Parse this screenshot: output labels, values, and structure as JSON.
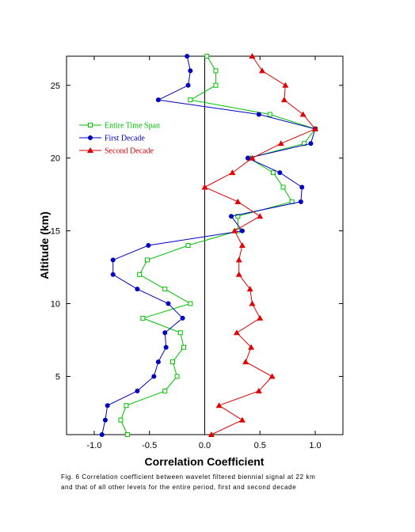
{
  "chart_data": {
    "type": "line",
    "xlabel": "Correlation Coefficient",
    "ylabel": "Altitude (km)",
    "xlim": [
      -1.25,
      1.25
    ],
    "ylim": [
      1,
      27
    ],
    "xticks": [
      -1.0,
      -0.5,
      0.0,
      0.5,
      1.0
    ],
    "xtick_labels": [
      "-1.0",
      "-0.5",
      "0.0",
      "0.5",
      "1.0"
    ],
    "yticks": [
      5,
      10,
      15,
      20,
      25
    ],
    "ytick_labels": [
      "5",
      "10",
      "15",
      "20",
      "25"
    ],
    "grid": false,
    "legend_position": "upper-left",
    "series": [
      {
        "name": "Entire Time Span",
        "color": "#00c000",
        "marker": "open-square",
        "points": [
          [
            -0.7,
            1
          ],
          [
            -0.76,
            2
          ],
          [
            -0.71,
            3
          ],
          [
            -0.36,
            4
          ],
          [
            -0.25,
            5
          ],
          [
            -0.29,
            6
          ],
          [
            -0.19,
            7
          ],
          [
            -0.22,
            8
          ],
          [
            -0.56,
            9
          ],
          [
            -0.13,
            10
          ],
          [
            -0.36,
            11
          ],
          [
            -0.59,
            12
          ],
          [
            -0.52,
            13
          ],
          [
            -0.15,
            14
          ],
          [
            0.3,
            15
          ],
          [
            0.3,
            16
          ],
          [
            0.79,
            17
          ],
          [
            0.71,
            18
          ],
          [
            0.62,
            19
          ],
          [
            0.4,
            20
          ],
          [
            0.9,
            21
          ],
          [
            1.0,
            22
          ],
          [
            0.59,
            23
          ],
          [
            -0.13,
            24
          ],
          [
            0.1,
            25
          ],
          [
            0.1,
            26
          ],
          [
            0.02,
            27
          ]
        ]
      },
      {
        "name": "First Decade",
        "color": "#0000c0",
        "marker": "filled-circle",
        "points": [
          [
            -0.93,
            1
          ],
          [
            -0.9,
            2
          ],
          [
            -0.88,
            3
          ],
          [
            -0.61,
            4
          ],
          [
            -0.46,
            5
          ],
          [
            -0.42,
            6
          ],
          [
            -0.35,
            7
          ],
          [
            -0.36,
            8
          ],
          [
            -0.2,
            9
          ],
          [
            -0.33,
            10
          ],
          [
            -0.61,
            11
          ],
          [
            -0.83,
            12
          ],
          [
            -0.83,
            13
          ],
          [
            -0.51,
            14
          ],
          [
            0.34,
            15
          ],
          [
            0.24,
            16
          ],
          [
            0.87,
            17
          ],
          [
            0.88,
            18
          ],
          [
            0.68,
            19
          ],
          [
            0.39,
            20
          ],
          [
            0.96,
            21
          ],
          [
            1.0,
            22
          ],
          [
            0.49,
            23
          ],
          [
            -0.42,
            24
          ],
          [
            -0.15,
            25
          ],
          [
            -0.13,
            26
          ],
          [
            -0.16,
            27
          ]
        ]
      },
      {
        "name": "Second Decade",
        "color": "#e00000",
        "marker": "filled-triangle",
        "points": [
          [
            0.06,
            1
          ],
          [
            0.34,
            2
          ],
          [
            0.13,
            3
          ],
          [
            0.49,
            4
          ],
          [
            0.61,
            5
          ],
          [
            0.37,
            6
          ],
          [
            0.42,
            7
          ],
          [
            0.29,
            8
          ],
          [
            0.5,
            9
          ],
          [
            0.43,
            10
          ],
          [
            0.41,
            11
          ],
          [
            0.31,
            12
          ],
          [
            0.31,
            13
          ],
          [
            0.34,
            14
          ],
          [
            0.27,
            15
          ],
          [
            0.5,
            16
          ],
          [
            0.3,
            17
          ],
          [
            0.0,
            18
          ],
          [
            0.25,
            19
          ],
          [
            0.43,
            20
          ],
          [
            0.69,
            21
          ],
          [
            1.0,
            22
          ],
          [
            0.89,
            23
          ],
          [
            0.72,
            24
          ],
          [
            0.73,
            25
          ],
          [
            0.52,
            26
          ],
          [
            0.43,
            27
          ]
        ]
      }
    ]
  },
  "caption": {
    "line1": "Fig. 6 Correlation coefficient between wavelet filtered biennial signal at 22 km",
    "line2": "and that of all other levels for the entire period, first and second decade"
  }
}
